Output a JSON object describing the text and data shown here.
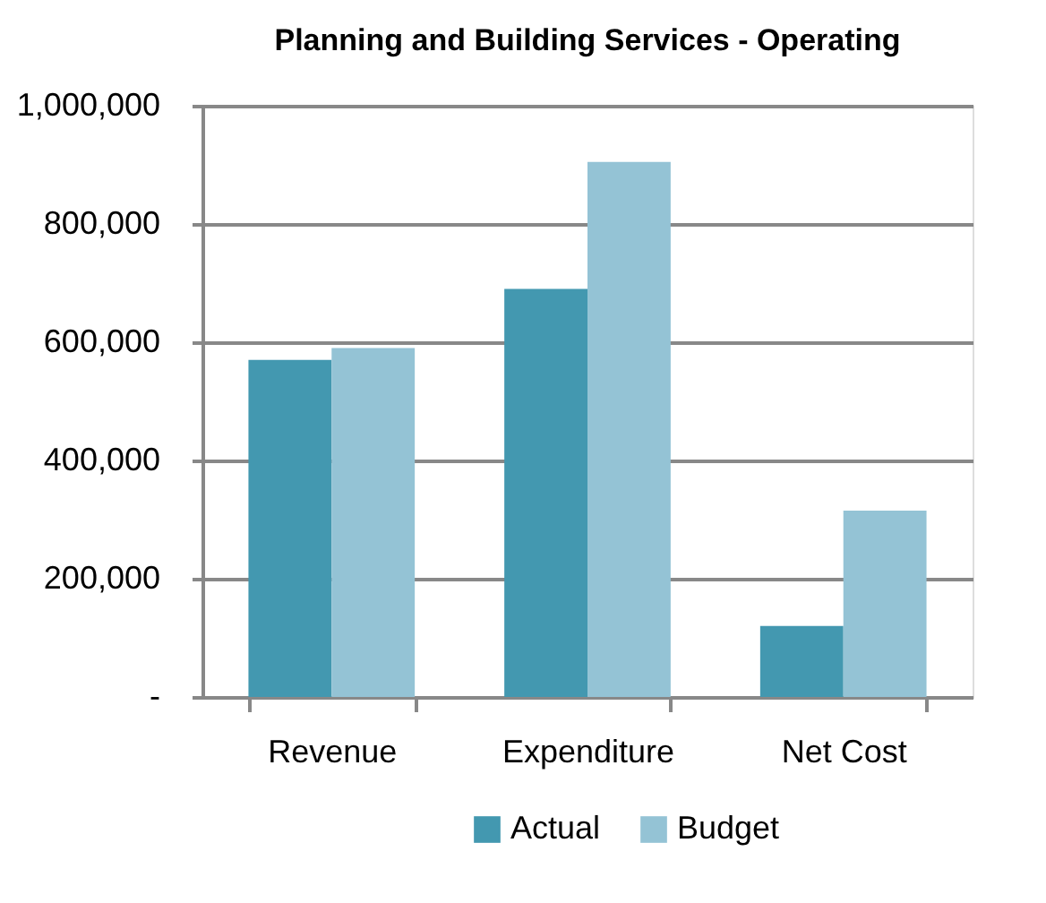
{
  "chart_data": {
    "type": "bar",
    "title": "Planning and Building Services - Operating",
    "categories": [
      "Revenue",
      "Expenditure",
      "Net Cost"
    ],
    "series": [
      {
        "name": "Actual",
        "color": "#4398b0",
        "values": [
          570000,
          690000,
          120000
        ]
      },
      {
        "name": "Budget",
        "color": "#94c3d5",
        "values": [
          590000,
          905000,
          315000
        ]
      }
    ],
    "ylim": [
      0,
      1000000
    ],
    "yticks": [
      {
        "value": 0,
        "label": "-"
      },
      {
        "value": 200000,
        "label": "200,000"
      },
      {
        "value": 400000,
        "label": "400,000"
      },
      {
        "value": 600000,
        "label": "600,000"
      },
      {
        "value": 800000,
        "label": "800,000"
      },
      {
        "value": 1000000,
        "label": "1,000,000"
      }
    ],
    "grid": "y",
    "legend": "bottom"
  }
}
